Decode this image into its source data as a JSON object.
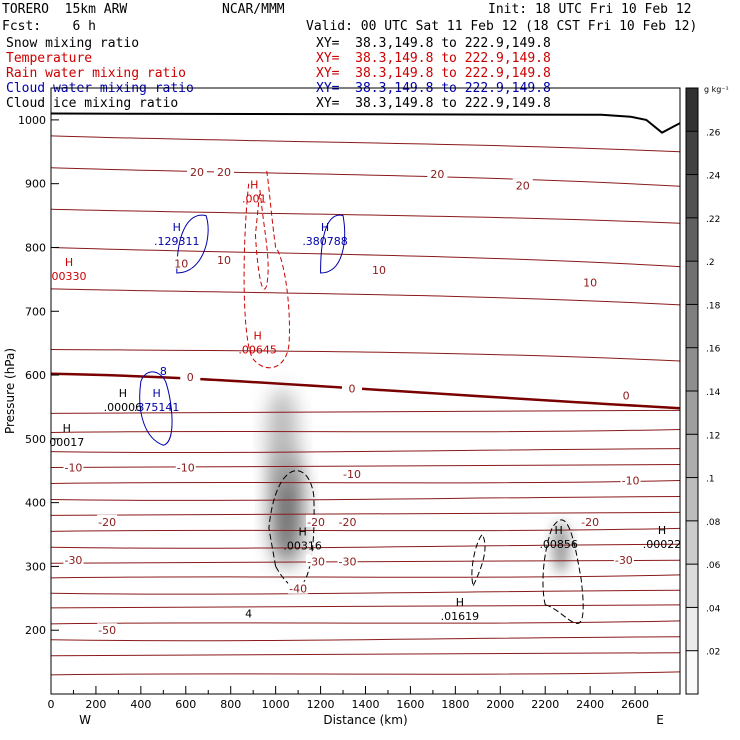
{
  "header": {
    "model": "TORERO  15km ARW",
    "org": "NCAR/MMM",
    "init": "Init: 18 UTC Fri 10 Feb 12",
    "fcst": "Fcst:    6 h",
    "valid": "Valid: 00 UTC Sat 11 Feb 12 (18 CST Fri 10 Feb 12)"
  },
  "fields": [
    {
      "label": "Snow mixing ratio",
      "xy": "XY=  38.3,149.8 to 222.9,149.8",
      "color": "#000000"
    },
    {
      "label": "Temperature",
      "xy": "XY=  38.3,149.8 to 222.9,149.8",
      "color": "#cc0000"
    },
    {
      "label": "Rain water mixing ratio",
      "xy": "XY=  38.3,149.8 to 222.9,149.8",
      "color": "#cc0000"
    },
    {
      "label": "Cloud water mixing ratio",
      "xy": "XY=  38.3,149.8 to 222.9,149.8",
      "color": "#0000aa"
    },
    {
      "label": "Cloud ice mixing ratio",
      "xy": "XY=  38.3,149.8 to 222.9,149.8",
      "color": "#000000"
    }
  ],
  "chart_data": {
    "type": "heatmap",
    "xlabel": "Distance (km)",
    "ylabel": "Pressure (hPa)",
    "xlim": [
      0,
      2800
    ],
    "ylim": [
      1050,
      100
    ],
    "x_ticks": [
      "0",
      "200",
      "400",
      "600",
      "800",
      "1000",
      "1200",
      "1400",
      "1600",
      "1800",
      "2000",
      "2200",
      "2400",
      "2600"
    ],
    "y_ticks": [
      "200",
      "300",
      "400",
      "500",
      "600",
      "700",
      "800",
      "900",
      "1000"
    ],
    "x_end_labels": {
      "left": "W",
      "right": "E"
    },
    "colorbar": {
      "unit": "g kg⁻¹",
      "ticks": [
        ".02",
        ".04",
        ".06",
        ".08",
        ".1",
        ".12",
        ".14",
        ".16",
        ".18",
        ".2",
        ".22",
        ".24",
        ".26"
      ],
      "range": [
        0,
        0.28
      ]
    },
    "snow_blobs": [
      {
        "x": 1050,
        "p": 390,
        "peak": 0.24,
        "sx": 130,
        "sp": 90
      },
      {
        "x": 1030,
        "p": 500,
        "peak": 0.12,
        "sx": 120,
        "sp": 80
      },
      {
        "x": 2270,
        "p": 330,
        "peak": 0.16,
        "sx": 70,
        "sp": 40
      }
    ],
    "temperature_contours": [
      {
        "label": "-50",
        "x": 250,
        "p": 200
      },
      {
        "label": "-40",
        "x": 1100,
        "p": 265
      },
      {
        "label": "-30",
        "x": 100,
        "p": 310
      },
      {
        "label": "-30",
        "x": 1180,
        "p": 308
      },
      {
        "label": "-30",
        "x": 1320,
        "p": 308
      },
      {
        "label": "-30",
        "x": 2550,
        "p": 310
      },
      {
        "label": "-20",
        "x": 250,
        "p": 370
      },
      {
        "label": "-20",
        "x": 1180,
        "p": 370
      },
      {
        "label": "-20",
        "x": 1320,
        "p": 370
      },
      {
        "label": "-20",
        "x": 2400,
        "p": 370
      },
      {
        "label": "-10",
        "x": 100,
        "p": 455
      },
      {
        "label": "-10",
        "x": 600,
        "p": 455
      },
      {
        "label": "-10",
        "x": 1340,
        "p": 445
      },
      {
        "label": "-10",
        "x": 2580,
        "p": 435
      },
      {
        "label": "0",
        "x": 620,
        "p": 597
      },
      {
        "label": "0",
        "x": 1340,
        "p": 579
      },
      {
        "label": "0",
        "x": 2560,
        "p": 568
      },
      {
        "label": "10",
        "x": 580,
        "p": 775
      },
      {
        "label": "10",
        "x": 770,
        "p": 780
      },
      {
        "label": "10",
        "x": 1460,
        "p": 765
      },
      {
        "label": "10",
        "x": 2400,
        "p": 745
      },
      {
        "label": "20",
        "x": 650,
        "p": 918
      },
      {
        "label": "20",
        "x": 770,
        "p": 918
      },
      {
        "label": "20",
        "x": 1720,
        "p": 915
      },
      {
        "label": "20",
        "x": 2100,
        "p": 897
      }
    ],
    "maxima": [
      {
        "value": ".00316",
        "x": 1120,
        "p": 333,
        "color": "#000000"
      },
      {
        "value": ".01619",
        "x": 1820,
        "p": 222,
        "color": "#000000"
      },
      {
        "value": ".00856",
        "x": 2260,
        "p": 335,
        "color": "#000000"
      },
      {
        "value": ".00022",
        "x": 2720,
        "p": 335,
        "color": "#000000"
      },
      {
        "value": "00017",
        "x": 70,
        "p": 495,
        "color": "#000000"
      },
      {
        "value": ".00006",
        "x": 320,
        "p": 550,
        "color": "#000000"
      },
      {
        "value": ".375141",
        "x": 470,
        "p": 550,
        "color": "#0000aa"
      },
      {
        "value": ".00645",
        "x": 920,
        "p": 640,
        "color": "#cc0000"
      },
      {
        "value": "00330",
        "x": 80,
        "p": 755,
        "color": "#cc0000"
      },
      {
        "value": ".129311",
        "x": 560,
        "p": 810,
        "color": "#0000aa"
      },
      {
        "value": ".380788",
        "x": 1220,
        "p": 810,
        "color": "#0000aa"
      },
      {
        "value": ".001",
        "x": 905,
        "p": 877,
        "color": "#cc0000"
      }
    ],
    "extra_labels": [
      {
        "text": "4",
        "x": 880,
        "p": 220,
        "color": "#000000"
      },
      {
        "text": "8",
        "x": 500,
        "p": 600,
        "color": "#0000aa"
      }
    ]
  }
}
